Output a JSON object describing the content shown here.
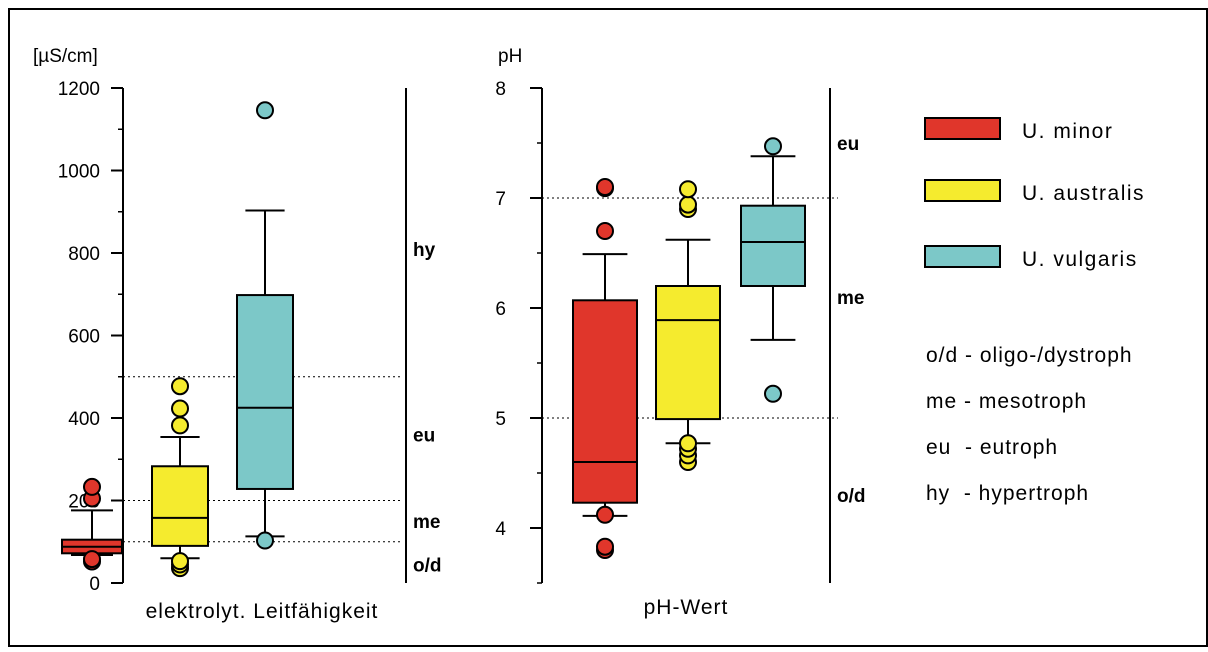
{
  "chart_data": [
    {
      "type": "boxplot",
      "ylabel": "[µS/cm]",
      "xlabel": "elektrolyt. Leitfähigkeit",
      "ylim": [
        0,
        1200
      ],
      "yticks": [
        "0",
        "200",
        "400",
        "600",
        "800",
        "1000",
        "1200"
      ],
      "reference_lines": [
        100,
        200,
        500
      ],
      "zones": [
        {
          "label": "hy",
          "y": 810
        },
        {
          "label": "eu",
          "y": 360
        },
        {
          "label": "me",
          "y": 150
        },
        {
          "label": "o/d",
          "y": 45
        }
      ],
      "series": [
        {
          "name": "U. minor",
          "color": "#e0362b",
          "whisker_low": 68,
          "q1": 72,
          "median": 88,
          "q3": 105,
          "whisker_high": 176,
          "outliers": [
            52,
            58,
            205,
            233
          ]
        },
        {
          "name": "U. australis",
          "color": "#f5eb2e",
          "whisker_low": 60,
          "q1": 90,
          "median": 158,
          "q3": 283,
          "whisker_high": 354,
          "outliers": [
            36,
            45,
            53,
            382,
            423,
            477
          ]
        },
        {
          "name": "U. vulgaris",
          "color": "#7cc8c8",
          "whisker_low": 113,
          "q1": 228,
          "median": 425,
          "q3": 698,
          "whisker_high": 903,
          "outliers": [
            103,
            1146
          ]
        }
      ]
    },
    {
      "type": "boxplot",
      "ylabel": "pH",
      "xlabel": "pH-Wert",
      "ylim": [
        3.5,
        8
      ],
      "yticks": [
        "4",
        "5",
        "6",
        "7",
        "8"
      ],
      "reference_lines": [
        5,
        7
      ],
      "zones": [
        {
          "label": "eu",
          "y": 7.5
        },
        {
          "label": "me",
          "y": 6.1
        },
        {
          "label": "o/d",
          "y": 4.3
        }
      ],
      "series": [
        {
          "name": "U. minor",
          "color": "#e0362b",
          "whisker_low": 4.11,
          "q1": 4.23,
          "median": 4.6,
          "q3": 6.07,
          "whisker_high": 6.49,
          "outliers": [
            3.8,
            3.83,
            4.12,
            6.7,
            7.09,
            7.1
          ]
        },
        {
          "name": "U. australis",
          "color": "#f5eb2e",
          "whisker_low": 4.77,
          "q1": 4.99,
          "median": 5.89,
          "q3": 6.2,
          "whisker_high": 6.62,
          "outliers": [
            4.6,
            4.66,
            4.72,
            4.77,
            6.9,
            6.94,
            7.08
          ]
        },
        {
          "name": "U. vulgaris",
          "color": "#7cc8c8",
          "whisker_low": 5.71,
          "q1": 6.2,
          "median": 6.6,
          "q3": 6.93,
          "whisker_high": 7.38,
          "outliers": [
            5.22,
            7.47
          ]
        }
      ]
    }
  ],
  "legend": {
    "items": [
      {
        "label": "U. minor",
        "color": "#e0362b"
      },
      {
        "label": "U. australis",
        "color": "#f5eb2e"
      },
      {
        "label": "U. vulgaris",
        "color": "#7cc8c8"
      }
    ],
    "notes": [
      "o/d - oligo-/dystroph",
      "me - mesotroph",
      "eu  - eutroph",
      "hy  - hypertroph"
    ]
  }
}
